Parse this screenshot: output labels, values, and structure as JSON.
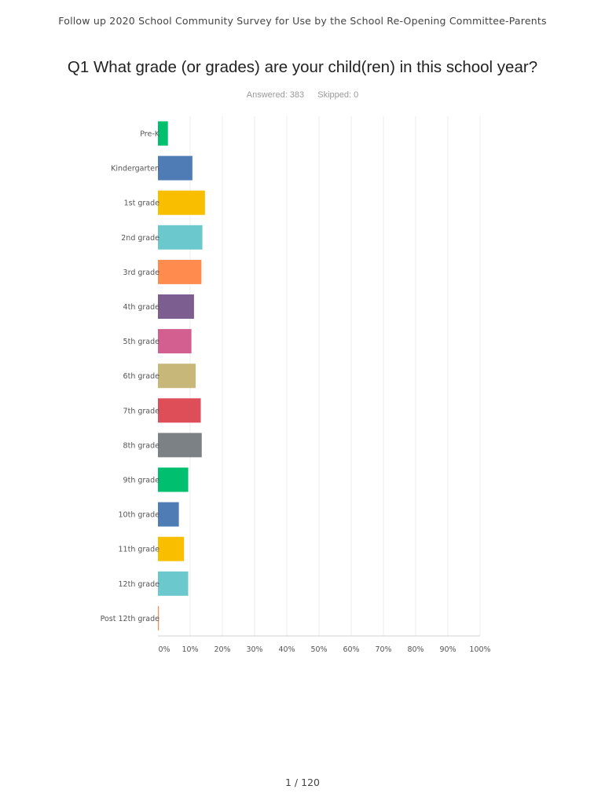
{
  "document": {
    "header": "Follow up 2020 School Community Survey for Use by the School Re-Opening Committee-Parents",
    "page_number": "1 / 120"
  },
  "question": {
    "title": "Q1 What grade (or grades) are  your child(ren) in this school year?",
    "answered": "Answered: 383",
    "skipped": "Skipped: 0"
  },
  "chart_data": {
    "type": "bar",
    "orientation": "horizontal",
    "title": "",
    "xlabel": "",
    "ylabel": "",
    "xlim": [
      0,
      100
    ],
    "unit": "%",
    "grid": true,
    "x_ticks": [
      "0%",
      "10%",
      "20%",
      "30%",
      "40%",
      "50%",
      "60%",
      "70%",
      "80%",
      "90%",
      "100%"
    ],
    "categories": [
      "Pre-K",
      "Kindergarten",
      "1st grade",
      "2nd grade",
      "3rd grade",
      "4th grade",
      "5th grade",
      "6th grade",
      "7th grade",
      "8th grade",
      "9th grade",
      "10th grade",
      "11th grade",
      "12th grade",
      "Post 12th grade"
    ],
    "values": [
      3.1,
      10.7,
      14.6,
      13.8,
      13.5,
      11.2,
      10.4,
      11.7,
      13.3,
      13.6,
      9.4,
      6.5,
      8.1,
      9.4,
      0.3
    ],
    "colors": [
      "#00bf6f",
      "#507cb6",
      "#f9be00",
      "#6bc8cd",
      "#ff8b4f",
      "#7d5e90",
      "#d25f90",
      "#c7b879",
      "#dd4e58",
      "#7c8185",
      "#00bf6f",
      "#507cb6",
      "#f9be00",
      "#6bc8cd",
      "#ff8b4f"
    ]
  }
}
